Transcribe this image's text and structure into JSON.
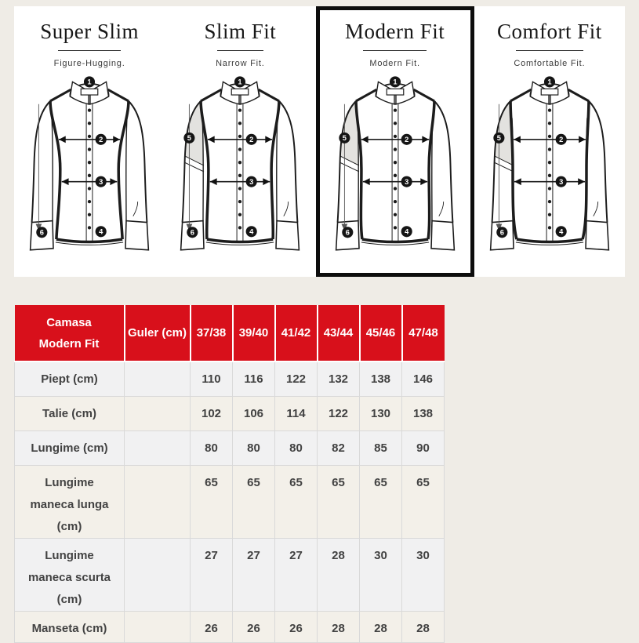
{
  "colors": {
    "page_bg": "#efece6",
    "panel_bg": "#ffffff",
    "selected_border": "#0d0d0d",
    "table_header_bg": "#d8101b",
    "table_header_text": "#ffffff",
    "row_alt_cool": "#f1f1f2",
    "row_alt_warm": "#f3f0e9",
    "grid_border": "#d9d9d9",
    "body_text": "#424242"
  },
  "fits": [
    {
      "id": "super-slim",
      "title": "Super Slim",
      "subtitle": "Figure-Hugging.",
      "selected": false,
      "shaded_sleeve": false,
      "markers": [
        "1",
        "2",
        "3",
        "4",
        "6"
      ]
    },
    {
      "id": "slim-fit",
      "title": "Slim Fit",
      "subtitle": "Narrow Fit.",
      "selected": false,
      "shaded_sleeve": true,
      "markers": [
        "1",
        "2",
        "3",
        "4",
        "5",
        "6"
      ]
    },
    {
      "id": "modern-fit",
      "title": "Modern Fit",
      "subtitle": "Modern Fit.",
      "selected": true,
      "shaded_sleeve": true,
      "markers": [
        "1",
        "2",
        "3",
        "4",
        "5",
        "6"
      ]
    },
    {
      "id": "comfort-fit",
      "title": "Comfort Fit",
      "subtitle": "Comfortable Fit.",
      "selected": false,
      "shaded_sleeve": true,
      "markers": [
        "1",
        "2",
        "3",
        "4",
        "5",
        "6"
      ]
    }
  ],
  "size_table": {
    "header": {
      "product": "Camasa Modern Fit",
      "product_lines": [
        "Camasa",
        "Modern Fit"
      ],
      "measure_col": "Guler (cm)",
      "sizes": [
        "37/38",
        "39/40",
        "41/42",
        "43/44",
        "45/46",
        "47/48"
      ]
    },
    "rows": [
      {
        "label": "Piept (cm)",
        "label_lines": [
          "Piept (cm)"
        ],
        "guler_value": "",
        "values": [
          "110",
          "116",
          "122",
          "132",
          "138",
          "146"
        ]
      },
      {
        "label": "Talie (cm)",
        "label_lines": [
          "Talie (cm)"
        ],
        "guler_value": "",
        "values": [
          "102",
          "106",
          "114",
          "122",
          "130",
          "138"
        ]
      },
      {
        "label": "Lungime (cm)",
        "label_lines": [
          "Lungime (cm)"
        ],
        "guler_value": "",
        "values": [
          "80",
          "80",
          "80",
          "82",
          "85",
          "90"
        ]
      },
      {
        "label": "Lungime maneca lunga (cm)",
        "label_lines": [
          "Lungime",
          "maneca lunga (cm)"
        ],
        "guler_value": "",
        "values": [
          "65",
          "65",
          "65",
          "65",
          "65",
          "65"
        ]
      },
      {
        "label": "Lungime maneca scurta (cm)",
        "label_lines": [
          "Lungime",
          "maneca scurta (cm)"
        ],
        "guler_value": "",
        "values": [
          "27",
          "27",
          "27",
          "28",
          "30",
          "30"
        ]
      },
      {
        "label": "Manseta (cm)",
        "label_lines": [
          "Manseta (cm)"
        ],
        "guler_value": "",
        "values": [
          "26",
          "26",
          "26",
          "28",
          "28",
          "28"
        ]
      }
    ]
  }
}
